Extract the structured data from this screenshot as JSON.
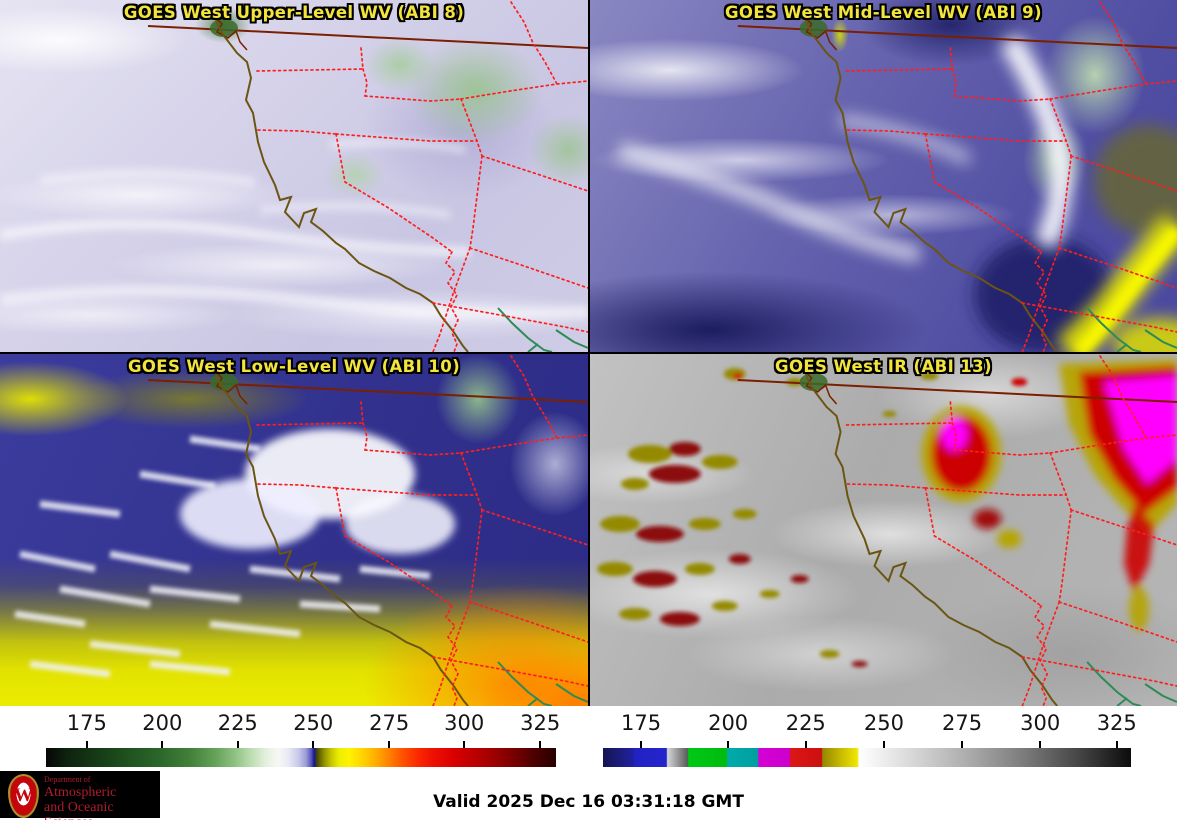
{
  "panels": [
    {
      "id": "abi8",
      "title": "GOES West Upper-Level WV (ABI 8)"
    },
    {
      "id": "abi9",
      "title": "GOES West Mid-Level WV (ABI 9)"
    },
    {
      "id": "abi10",
      "title": "GOES West Low-Level WV (ABI 10)"
    },
    {
      "id": "abi13",
      "title": "GOES West IR (ABI 13)"
    }
  ],
  "colorbars": {
    "left": {
      "ticks": [
        175,
        200,
        225,
        250,
        275,
        300,
        325
      ],
      "tick_percents": [
        8.0,
        22.8,
        37.6,
        52.4,
        67.3,
        82.0,
        96.9
      ],
      "value_range": [
        162,
        330
      ],
      "gradient": [
        [
          0,
          "#060606"
        ],
        [
          4,
          "#0e220e"
        ],
        [
          9,
          "#143614"
        ],
        [
          15,
          "#1d4e1d"
        ],
        [
          22,
          "#2a662a"
        ],
        [
          28,
          "#417f39"
        ],
        [
          33,
          "#62a156"
        ],
        [
          37,
          "#8fc083"
        ],
        [
          40,
          "#b9dcae"
        ],
        [
          43,
          "#e3efdc"
        ],
        [
          45.5,
          "#f7f8f4"
        ],
        [
          47.5,
          "#e9e9f5"
        ],
        [
          49.5,
          "#c9c9ea"
        ],
        [
          51,
          "#9b9bd8"
        ],
        [
          52,
          "#5555bb"
        ],
        [
          52.6,
          "#17178f"
        ],
        [
          53.2,
          "#4c4c00"
        ],
        [
          54.5,
          "#8f8f00"
        ],
        [
          56,
          "#c9c900"
        ],
        [
          57.5,
          "#eeee00"
        ],
        [
          59.5,
          "#fff200"
        ],
        [
          62,
          "#ffd400"
        ],
        [
          64.5,
          "#ffb000"
        ],
        [
          67.3,
          "#ff8000"
        ],
        [
          70,
          "#ff5000"
        ],
        [
          73,
          "#fa2800"
        ],
        [
          76,
          "#ee0f00"
        ],
        [
          80,
          "#d80000"
        ],
        [
          84,
          "#bc0000"
        ],
        [
          88,
          "#9c0000"
        ],
        [
          92,
          "#750000"
        ],
        [
          96,
          "#4a0000"
        ],
        [
          100,
          "#270000"
        ]
      ]
    },
    "right": {
      "ticks": [
        175,
        200,
        225,
        250,
        275,
        300,
        325
      ],
      "tick_percents": [
        7.2,
        23.7,
        38.4,
        53.2,
        68.0,
        82.8,
        97.3
      ],
      "value_range": [
        160,
        330
      ],
      "gradient": [
        [
          0,
          "#141452"
        ],
        [
          3,
          "#1c1c7a"
        ],
        [
          5.7,
          "#2020a0"
        ],
        [
          6,
          "#2222c4"
        ],
        [
          12,
          "#2424cc"
        ],
        [
          12.2,
          "#d6d6d6"
        ],
        [
          16,
          "#5c5c5c"
        ],
        [
          16.2,
          "#00c814"
        ],
        [
          23.4,
          "#00bb10"
        ],
        [
          23.6,
          "#00aaaa"
        ],
        [
          29.3,
          "#009f9f"
        ],
        [
          29.5,
          "#d400d4"
        ],
        [
          35.3,
          "#cc00cc"
        ],
        [
          35.5,
          "#dc1616"
        ],
        [
          41.4,
          "#cc1010"
        ],
        [
          41.6,
          "#958700"
        ],
        [
          45,
          "#c8b900"
        ],
        [
          48.2,
          "#f0e800"
        ],
        [
          48.5,
          "#ffffff"
        ],
        [
          60,
          "#d2d2d2"
        ],
        [
          70,
          "#a8a8a8"
        ],
        [
          80,
          "#7a7a7a"
        ],
        [
          90,
          "#464646"
        ],
        [
          100,
          "#0c0c0c"
        ]
      ]
    }
  },
  "footer": {
    "valid_text": "Valid 2025 Dec 16 03:31:18 GMT"
  },
  "logo": {
    "line1": "Department of",
    "line2": "Atmospheric",
    "line3": "and Oceanic Sciences"
  },
  "palette": {
    "title_text": "#f2e43c",
    "title_outline": "#000000",
    "state_border_dotted": "#ff1e1e",
    "canada_border_solid": "#7a1f00",
    "coastline": "#6b5513",
    "mexico_sonora_coast": "#2e8b57",
    "wv_moist_white": "#f7f8f4",
    "wv_dry_yellow": "#e8e800",
    "wv_very_dry_orange": "#ff8c00",
    "wv_cold_green": "#9cc492",
    "wv_base_lavender": "#cfcce6",
    "wv_base_navy": "#32329a",
    "ir_gray_base": "#b0b0b0",
    "ir_enhanced_magenta": "#ff00ff",
    "ir_enhanced_red": "#cc0505",
    "ir_enhanced_olive": "#b6a400",
    "logo_bg": "#000000",
    "logo_text_red": "#b01c2e"
  }
}
